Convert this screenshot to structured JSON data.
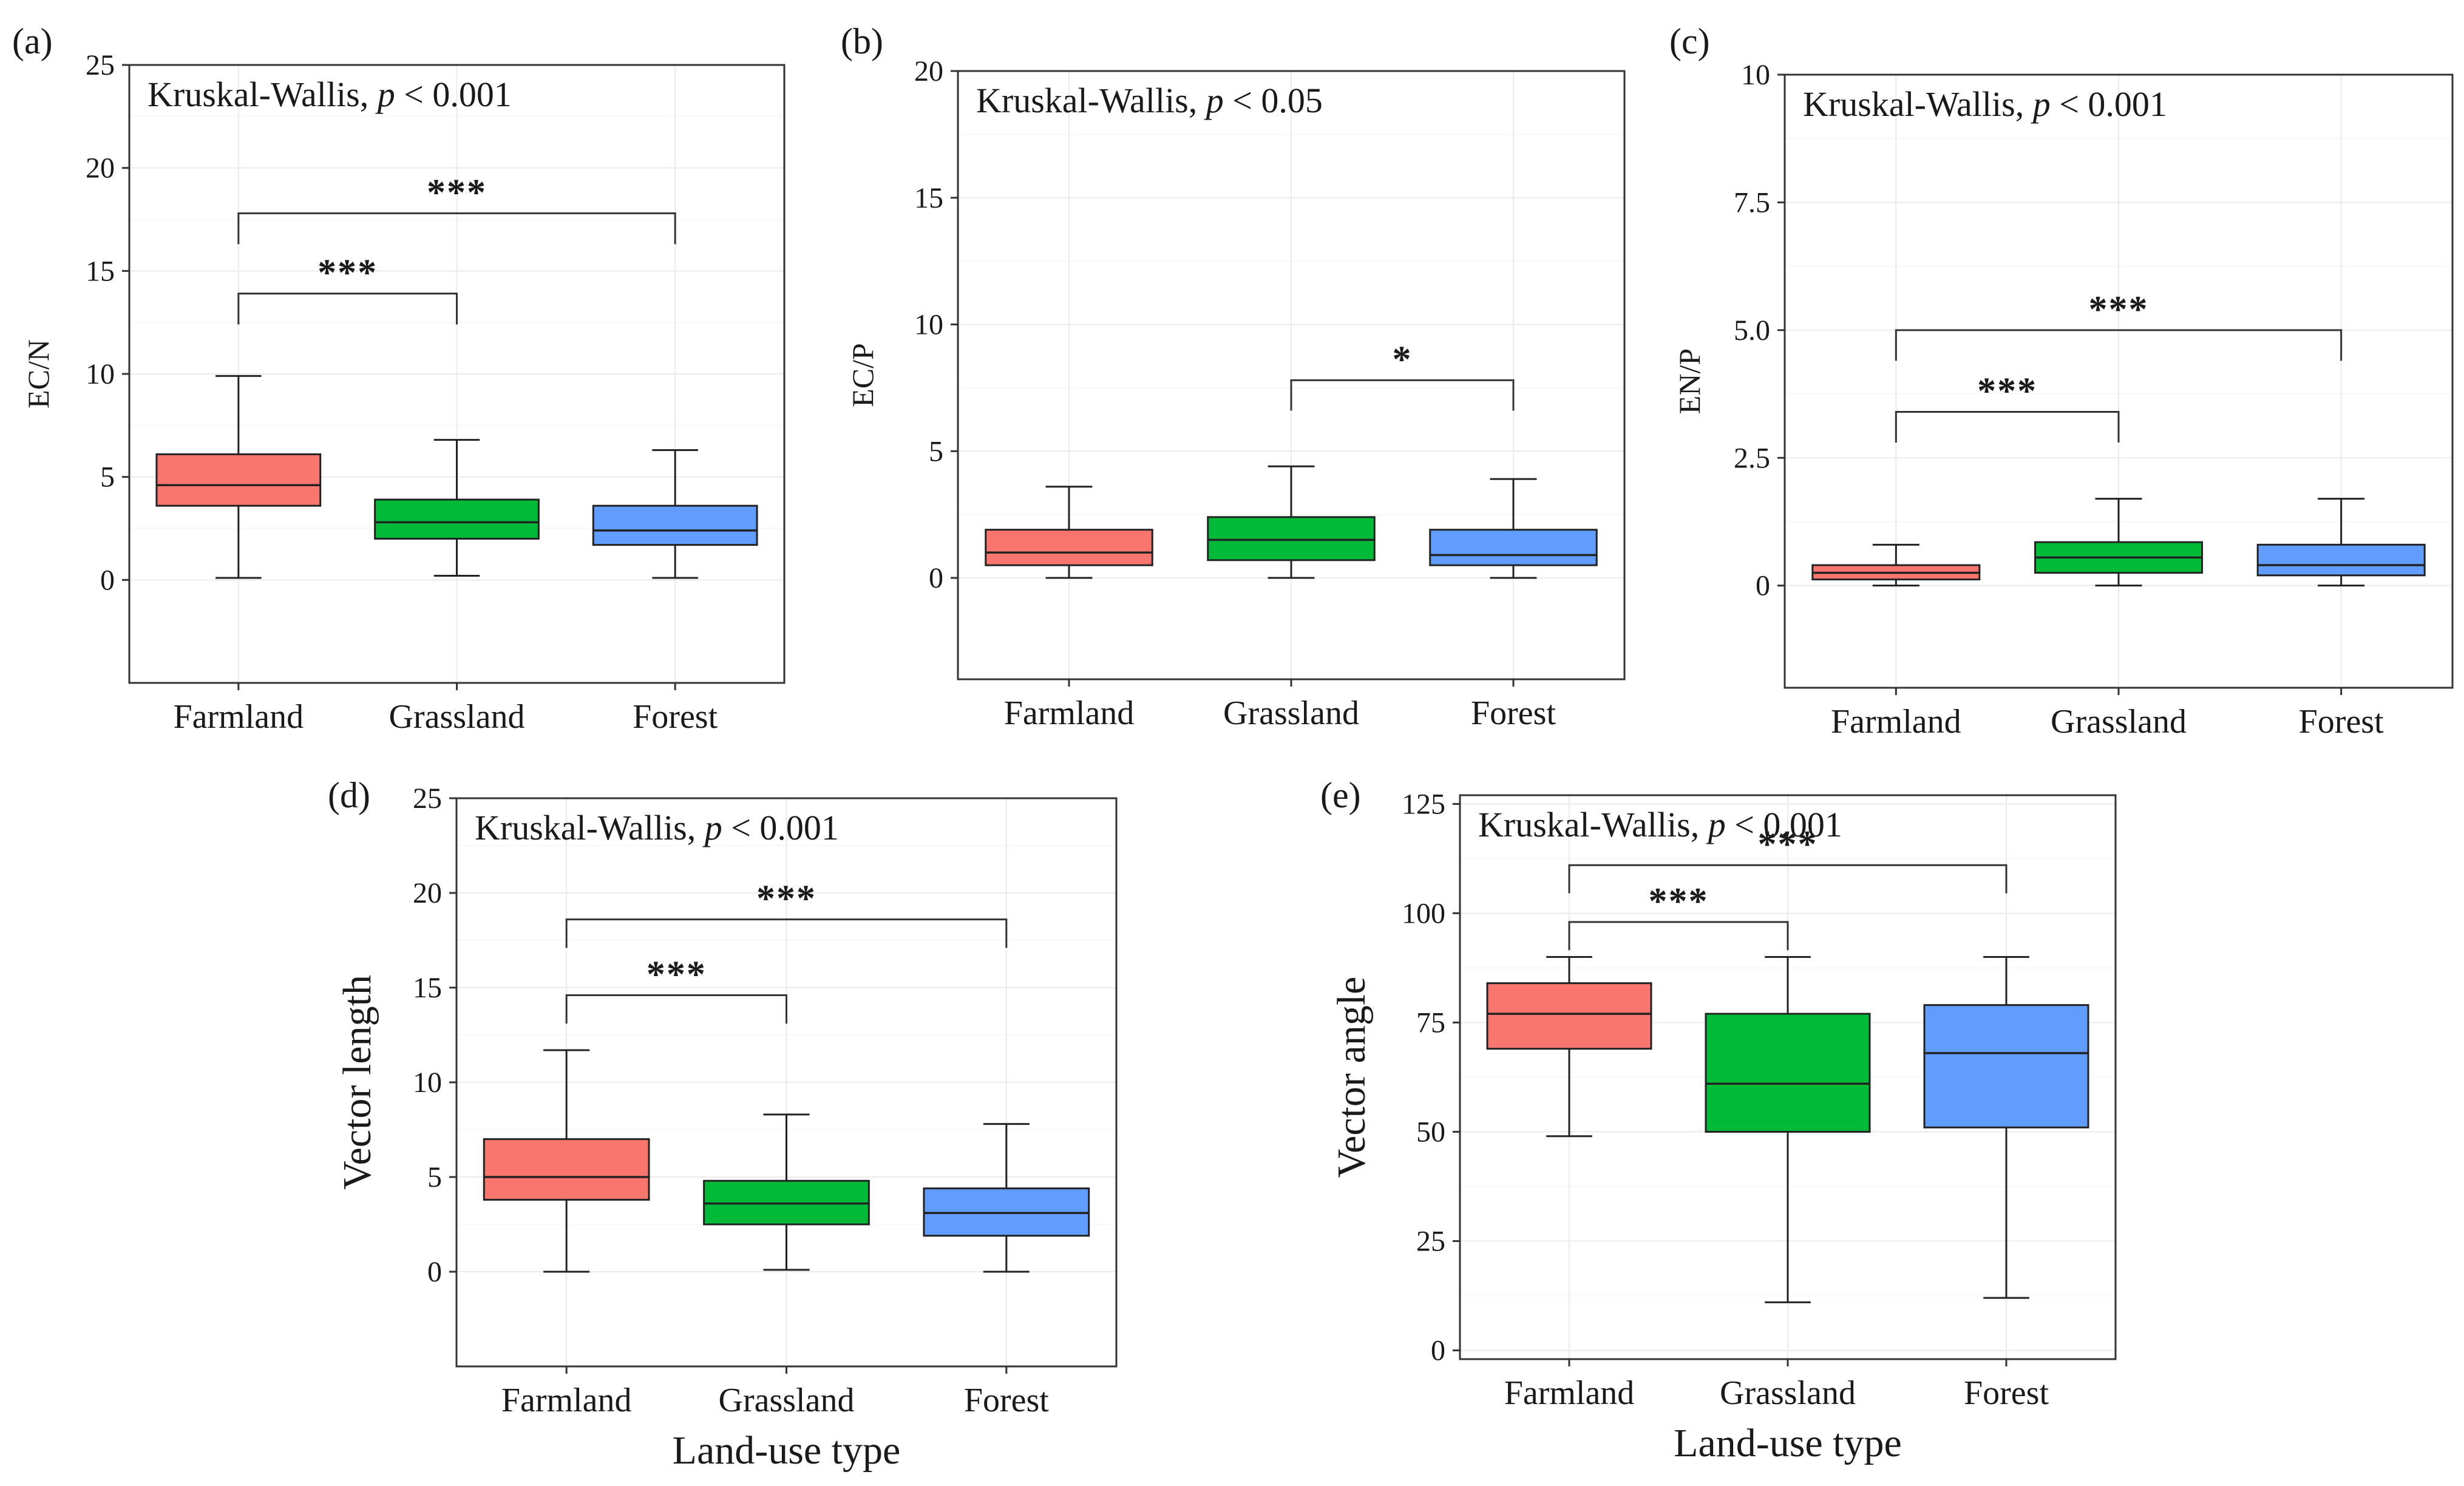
{
  "figure": {
    "categories": [
      "Farmland",
      "Grassland",
      "Forest"
    ],
    "category_colors": [
      "#F8766D",
      "#00BA38",
      "#619CFF"
    ]
  },
  "chart_data": [
    {
      "type": "box",
      "panel_label": "(a)",
      "test_label": "Kruskal-Wallis, ",
      "p_label": "p",
      "p_value_text": " < 0.001",
      "ylabel": "EC/N",
      "xlabel": "",
      "ylim": [
        -5,
        25
      ],
      "yticks": [
        0,
        5,
        10,
        15,
        20,
        25
      ],
      "ytick_labels": [
        "0",
        "5",
        "10",
        "15",
        "20",
        "25"
      ],
      "categories": [
        "Farmland",
        "Grassland",
        "Forest"
      ],
      "boxes": [
        {
          "category": "Farmland",
          "min": 0.1,
          "q1": 3.6,
          "median": 4.6,
          "q3": 6.1,
          "max": 9.9
        },
        {
          "category": "Grassland",
          "min": 0.2,
          "q1": 2.0,
          "median": 2.8,
          "q3": 3.9,
          "max": 6.8
        },
        {
          "category": "Forest",
          "min": 0.1,
          "q1": 1.7,
          "median": 2.4,
          "q3": 3.6,
          "max": 6.3
        }
      ],
      "comparisons": [
        {
          "from": "Farmland",
          "to": "Grassland",
          "y": 13.9,
          "label": "***"
        },
        {
          "from": "Farmland",
          "to": "Forest",
          "y": 17.8,
          "label": "***"
        }
      ]
    },
    {
      "type": "box",
      "panel_label": "(b)",
      "test_label": "Kruskal-Wallis, ",
      "p_label": "p",
      "p_value_text": " < 0.05",
      "ylabel": "EC/P",
      "xlabel": "",
      "ylim": [
        -4,
        20
      ],
      "yticks": [
        0,
        5,
        10,
        15,
        20
      ],
      "ytick_labels": [
        "0",
        "5",
        "10",
        "15",
        "20"
      ],
      "categories": [
        "Farmland",
        "Grassland",
        "Forest"
      ],
      "boxes": [
        {
          "category": "Farmland",
          "min": 0.0,
          "q1": 0.5,
          "median": 1.0,
          "q3": 1.9,
          "max": 3.6
        },
        {
          "category": "Grassland",
          "min": 0.0,
          "q1": 0.7,
          "median": 1.5,
          "q3": 2.4,
          "max": 4.4
        },
        {
          "category": "Forest",
          "min": 0.0,
          "q1": 0.5,
          "median": 0.9,
          "q3": 1.9,
          "max": 3.9
        }
      ],
      "comparisons": [
        {
          "from": "Grassland",
          "to": "Forest",
          "y": 7.8,
          "label": "*"
        }
      ]
    },
    {
      "type": "box",
      "panel_label": "(c)",
      "test_label": "Kruskal-Wallis, ",
      "p_label": "p",
      "p_value_text": " < 0.001",
      "ylabel": "EN/P",
      "xlabel": "",
      "ylim": [
        -2,
        10
      ],
      "yticks": [
        0,
        2.5,
        5,
        7.5,
        10
      ],
      "ytick_labels": [
        "0",
        "2.5",
        "5.0",
        "7.5",
        "10"
      ],
      "categories": [
        "Farmland",
        "Grassland",
        "Forest"
      ],
      "boxes": [
        {
          "category": "Farmland",
          "min": 0.0,
          "q1": 0.12,
          "median": 0.25,
          "q3": 0.4,
          "max": 0.8
        },
        {
          "category": "Grassland",
          "min": 0.0,
          "q1": 0.25,
          "median": 0.55,
          "q3": 0.85,
          "max": 1.7
        },
        {
          "category": "Forest",
          "min": 0.0,
          "q1": 0.2,
          "median": 0.4,
          "q3": 0.8,
          "max": 1.7
        }
      ],
      "comparisons": [
        {
          "from": "Farmland",
          "to": "Grassland",
          "y": 3.4,
          "label": "***"
        },
        {
          "from": "Farmland",
          "to": "Forest",
          "y": 5.0,
          "label": "***"
        }
      ]
    },
    {
      "type": "box",
      "panel_label": "(d)",
      "test_label": "Kruskal-Wallis, ",
      "p_label": "p",
      "p_value_text": " < 0.001",
      "ylabel": "Vector length",
      "xlabel": "Land-use type",
      "ylim": [
        -5,
        25
      ],
      "yticks": [
        0,
        5,
        10,
        15,
        20,
        25
      ],
      "ytick_labels": [
        "0",
        "5",
        "10",
        "15",
        "20",
        "25"
      ],
      "categories": [
        "Farmland",
        "Grassland",
        "Forest"
      ],
      "boxes": [
        {
          "category": "Farmland",
          "min": 0.0,
          "q1": 3.8,
          "median": 5.0,
          "q3": 7.0,
          "max": 11.7
        },
        {
          "category": "Grassland",
          "min": 0.1,
          "q1": 2.5,
          "median": 3.6,
          "q3": 4.8,
          "max": 8.3
        },
        {
          "category": "Forest",
          "min": 0.0,
          "q1": 1.9,
          "median": 3.1,
          "q3": 4.4,
          "max": 7.8
        }
      ],
      "comparisons": [
        {
          "from": "Farmland",
          "to": "Grassland",
          "y": 14.6,
          "label": "***"
        },
        {
          "from": "Farmland",
          "to": "Forest",
          "y": 18.6,
          "label": "***"
        }
      ]
    },
    {
      "type": "box",
      "panel_label": "(e)",
      "test_label": "Kruskal-Wallis, ",
      "p_label": "p",
      "p_value_text": " < 0.001",
      "ylabel": "Vector angle",
      "xlabel": "Land-use type",
      "ylim": [
        -2,
        127
      ],
      "yticks": [
        0,
        25,
        50,
        75,
        100,
        125
      ],
      "ytick_labels": [
        "0",
        "25",
        "50",
        "75",
        "100",
        "125"
      ],
      "categories": [
        "Farmland",
        "Grassland",
        "Forest"
      ],
      "boxes": [
        {
          "category": "Farmland",
          "min": 49,
          "q1": 69,
          "median": 77,
          "q3": 84,
          "max": 90
        },
        {
          "category": "Grassland",
          "min": 11,
          "q1": 50,
          "median": 61,
          "q3": 77,
          "max": 90
        },
        {
          "category": "Forest",
          "min": 12,
          "q1": 51,
          "median": 68,
          "q3": 79,
          "max": 90
        }
      ],
      "comparisons": [
        {
          "from": "Farmland",
          "to": "Grassland",
          "y": 98,
          "label": "***"
        },
        {
          "from": "Farmland",
          "to": "Forest",
          "y": 111,
          "label": "***"
        }
      ]
    }
  ]
}
